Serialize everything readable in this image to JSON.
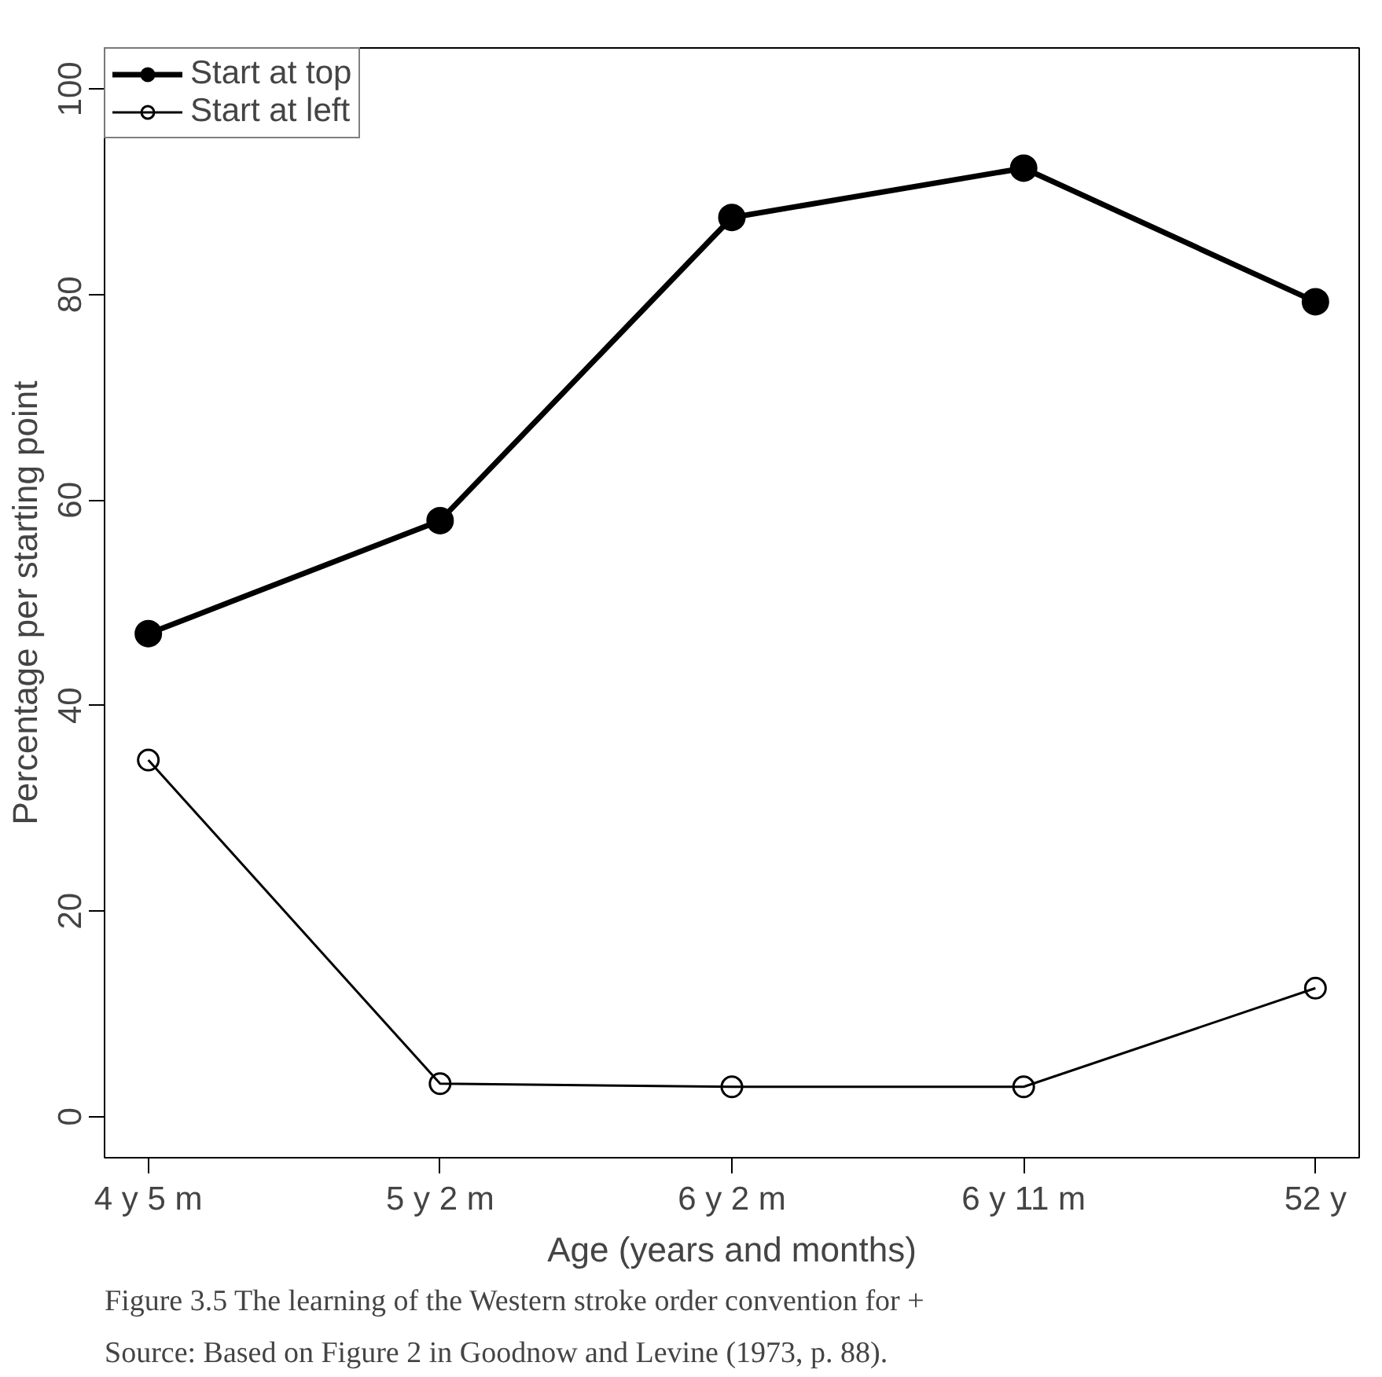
{
  "chart_data": {
    "type": "line",
    "xlabel": "Age (years and months)",
    "ylabel": "Percentage per starting point",
    "categories": [
      "4 y 5 m",
      "5 y 2 m",
      "6 y 2 m",
      "6 y 11 m",
      "52 y"
    ],
    "series": [
      {
        "name": "Start at top",
        "color": "#000000",
        "values": [
          47,
          58,
          87.5,
          92.3,
          79.3
        ]
      },
      {
        "name": "Start at left",
        "color": "#000000",
        "values": [
          34.7,
          3.2,
          2.9,
          2.9,
          12.5
        ]
      }
    ],
    "ylim": [
      -4,
      104
    ],
    "yticks": [
      0,
      20,
      40,
      60,
      80,
      100
    ],
    "grid": false,
    "legend": "top left",
    "marker": "circle",
    "line_style": "solid",
    "annotations": [
      "Figure 3.5  The learning of the Western stroke order convention for +",
      "Source: Based on Figure 2 in Goodnow and Levine (1973, p. 88)."
    ]
  }
}
